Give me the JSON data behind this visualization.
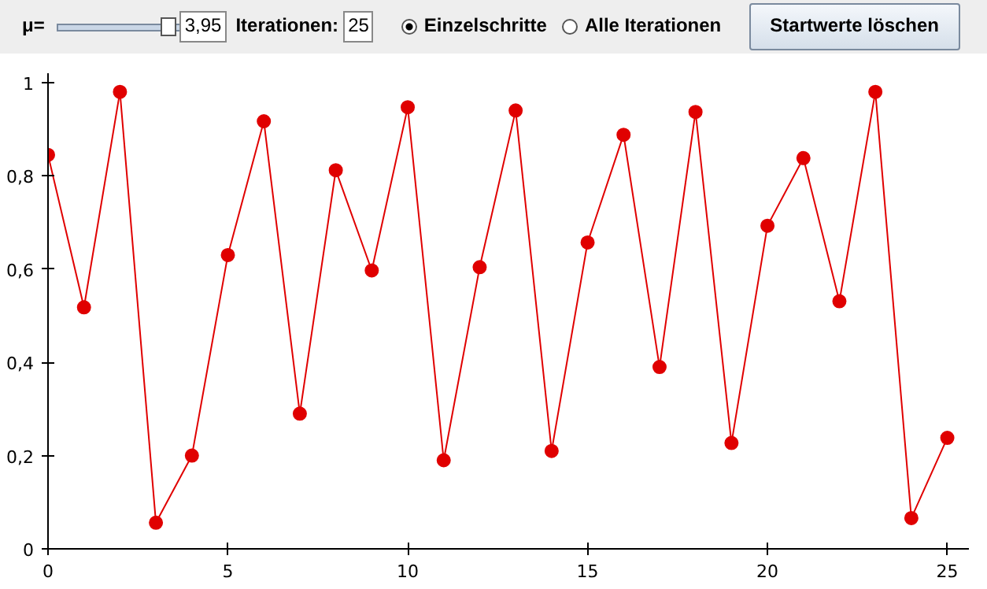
{
  "chart_data": {
    "type": "line",
    "x": [
      0,
      1,
      2,
      3,
      4,
      5,
      6,
      7,
      8,
      9,
      10,
      11,
      12,
      13,
      14,
      15,
      16,
      17,
      18,
      19,
      20,
      21,
      22,
      23,
      24,
      25
    ],
    "series": [
      {
        "color": "#e00000",
        "values": [
          0.845,
          0.518,
          0.98,
          0.056,
          0.2,
          0.63,
          0.917,
          0.29,
          0.812,
          0.597,
          0.947,
          0.19,
          0.604,
          0.94,
          0.21,
          0.657,
          0.888,
          0.39,
          0.937,
          0.227,
          0.693,
          0.838,
          0.531,
          0.98,
          0.066,
          0.238
        ]
      }
    ],
    "marker": "circle",
    "line_style": "solid",
    "grid": false,
    "xlim": [
      0,
      25.6
    ],
    "ylim": [
      0,
      1.02
    ],
    "xticks": [
      0,
      5,
      10,
      15,
      20,
      25
    ],
    "yticks": [
      0,
      {
        "value": 0.2,
        "label": "0,2"
      },
      {
        "value": 0.4,
        "label": "0,4"
      },
      {
        "value": 0.6,
        "label": "0,6"
      },
      {
        "value": 0.8,
        "label": "0,8"
      },
      1
    ],
    "annotations": [
      "μ=",
      "3,95",
      "Iterationen:",
      "25",
      "Einzelschritte",
      "Alle Iterationen",
      "Startwerte löschen"
    ]
  }
}
